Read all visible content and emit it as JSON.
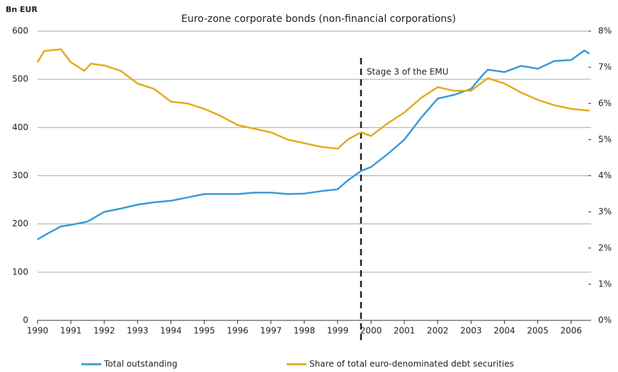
{
  "chart_data": {
    "type": "line",
    "title": "Euro-zone corporate bonds (non-financial corporations)",
    "y_label": "Bn EUR",
    "xlim": [
      1990,
      2006.6
    ],
    "xticks": [
      1990,
      1991,
      1992,
      1993,
      1994,
      1995,
      1996,
      1997,
      1998,
      1999,
      2000,
      2001,
      2002,
      2003,
      2004,
      2005,
      2006
    ],
    "ylim": [
      0,
      600
    ],
    "yticks": [
      0,
      100,
      200,
      300,
      400,
      500,
      600
    ],
    "y2lim": [
      0,
      8
    ],
    "y2ticks": [
      {
        "value": 0,
        "label": "0%"
      },
      {
        "value": 1,
        "label": "1%"
      },
      {
        "value": 2,
        "label": "2%"
      },
      {
        "value": 3,
        "label": "3%"
      },
      {
        "value": 4,
        "label": "4%"
      },
      {
        "value": 5,
        "label": "5%"
      },
      {
        "value": 6,
        "label": "6%"
      },
      {
        "value": 7,
        "label": "7%"
      },
      {
        "value": 8,
        "label": "8%"
      }
    ],
    "grid": true,
    "annotation": {
      "x": 1999.7,
      "label": "Stage 3 of the EMU"
    },
    "series": [
      {
        "name": "Total outstanding",
        "color": "#3a9ad9",
        "x": [
          1990,
          1990.3,
          1990.7,
          1991,
          1991.5,
          1992,
          1992.5,
          1993,
          1993.5,
          1994,
          1994.5,
          1995,
          1996,
          1996.5,
          1997,
          1997.5,
          1998,
          1998.5,
          1999,
          1999.3,
          1999.7,
          2000,
          2000.5,
          2001,
          2001.5,
          2002,
          2002.5,
          2003,
          2003.3,
          2003.5,
          2004,
          2004.5,
          2005,
          2005.5,
          2006,
          2006.4,
          2006.55
        ],
        "values": [
          168,
          180,
          195,
          198,
          205,
          225,
          232,
          240,
          245,
          248,
          255,
          262,
          262,
          265,
          265,
          262,
          263,
          268,
          272,
          290,
          310,
          318,
          345,
          375,
          420,
          460,
          468,
          480,
          505,
          520,
          515,
          528,
          522,
          538,
          540,
          560,
          553
        ]
      },
      {
        "name": "Share of total euro-denominated debt securities",
        "color": "#e3ab1e",
        "axis": "y2",
        "x": [
          1990,
          1990.2,
          1990.7,
          1991,
          1991.4,
          1991.6,
          1992,
          1992.5,
          1993,
          1993.5,
          1994,
          1994.5,
          1995,
          1995.5,
          1996,
          1996.5,
          1997,
          1997.5,
          1998,
          1998.5,
          1999,
          1999.3,
          1999.7,
          2000,
          2000.5,
          2001,
          2001.5,
          2002,
          2002.5,
          2003,
          2003.5,
          2004,
          2004.5,
          2005,
          2005.5,
          2006,
          2006.55
        ],
        "values": [
          7.14,
          7.45,
          7.5,
          7.14,
          6.9,
          7.1,
          7.05,
          6.9,
          6.55,
          6.4,
          6.05,
          6.0,
          5.85,
          5.65,
          5.4,
          5.3,
          5.2,
          5.0,
          4.9,
          4.8,
          4.75,
          5.0,
          5.2,
          5.1,
          5.45,
          5.75,
          6.15,
          6.45,
          6.35,
          6.35,
          6.7,
          6.55,
          6.3,
          6.1,
          5.95,
          5.85,
          5.8
        ]
      }
    ]
  }
}
